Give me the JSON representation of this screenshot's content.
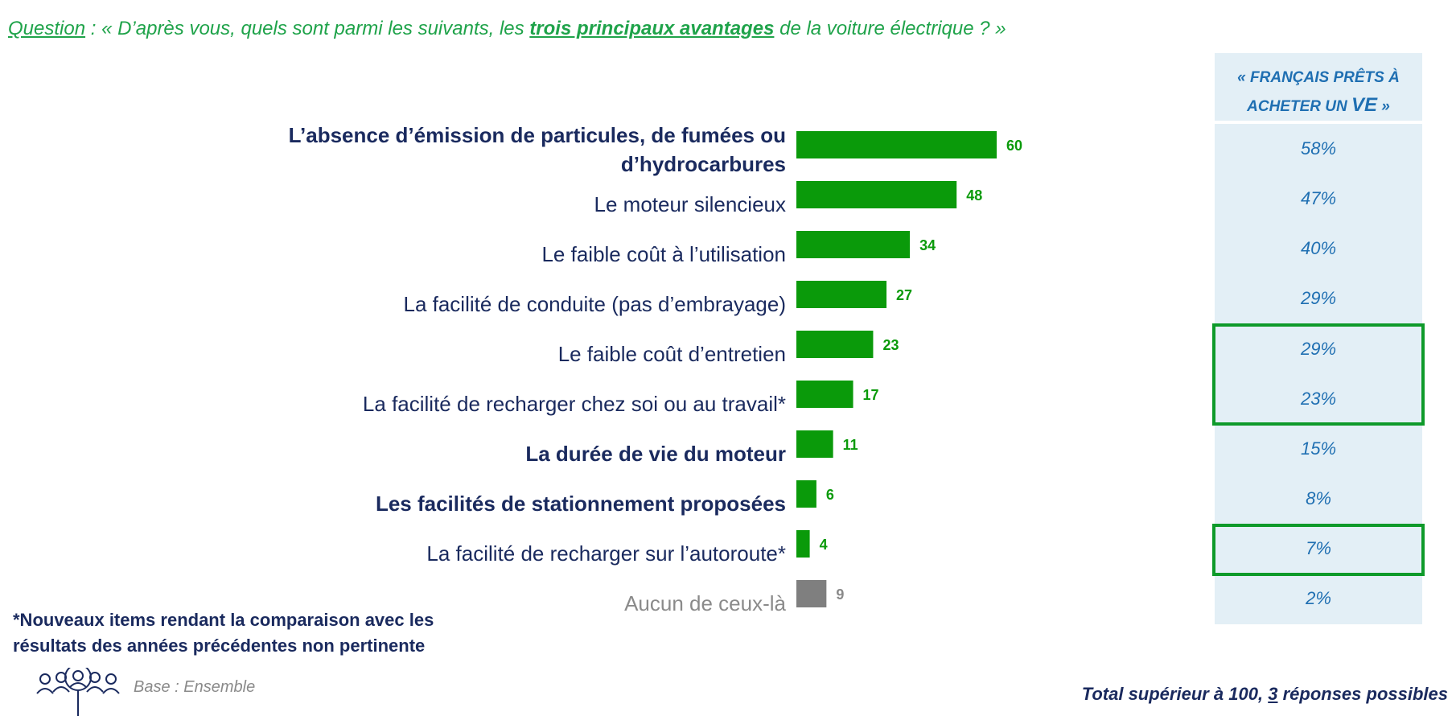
{
  "question": {
    "prefix": "Question",
    "text_before": " : « D’après vous, quels sont parmi les suivants, les ",
    "emphasis": "trois principaux avantages",
    "text_after": " de la voiture électrique ? »"
  },
  "panel": {
    "header_line1": "« FRANÇAIS PRÊTS À",
    "header_line2_small": "ACHETER UN ",
    "header_line2_big": "VE",
    "header_line2_end": " »",
    "values": [
      "58%",
      "47%",
      "40%",
      "29%",
      "29%",
      "23%",
      "15%",
      "8%",
      "7%",
      "2%"
    ]
  },
  "colors": {
    "bar": "#0a9a0a",
    "bar_none": "#7f7f7f",
    "value_label": "#0a9a0a",
    "value_label_none": "#8a8a8a",
    "question": "#1fa34a",
    "panel_text": "#1f6fb2",
    "highlight": "#0e9a2a"
  },
  "chart_data": {
    "type": "bar",
    "orientation": "horizontal",
    "categories": [
      "L’absence d’émission de particules, de fumées ou d’hydrocarbures",
      "Le moteur silencieux",
      "Le faible coût à l’utilisation",
      "La facilité de conduite (pas d’embrayage)",
      "Le faible coût d’entretien",
      "La facilité de recharger chez soi ou au travail*",
      "La durée de vie du moteur",
      "Les facilités de stationnement proposées",
      "La facilité de recharger sur l’autoroute*",
      "Aucun de ceux-là"
    ],
    "category_lines": [
      [
        "L’absence d’émission de particules, de fumées ou",
        "d’hydrocarbures"
      ],
      [
        "Le moteur silencieux"
      ],
      [
        "Le faible coût à l’utilisation"
      ],
      [
        "La facilité de conduite (pas d’embrayage)"
      ],
      [
        "Le faible coût d’entretien"
      ],
      [
        "La facilité de recharger chez soi ou au travail*"
      ],
      [
        "La durée de vie du moteur"
      ],
      [
        "Les facilités de stationnement proposées"
      ],
      [
        "La facilité de recharger sur l’autoroute*"
      ],
      [
        "Aucun de ceux-là"
      ]
    ],
    "values": [
      60,
      48,
      34,
      27,
      23,
      17,
      11,
      6,
      4,
      9
    ],
    "bold_categories": [
      0,
      6,
      7
    ],
    "none_category": 9,
    "xlim": [
      0,
      100
    ],
    "grid": false,
    "legend": "none"
  },
  "footnote": {
    "line1": "*Nouveaux items rendant la comparaison avec les",
    "line2": "résultats des années précédentes non pertinente"
  },
  "base_text": "Base : Ensemble",
  "total": {
    "before": "Total supérieur à 100, ",
    "number": "3",
    "after": " réponses possibles"
  }
}
